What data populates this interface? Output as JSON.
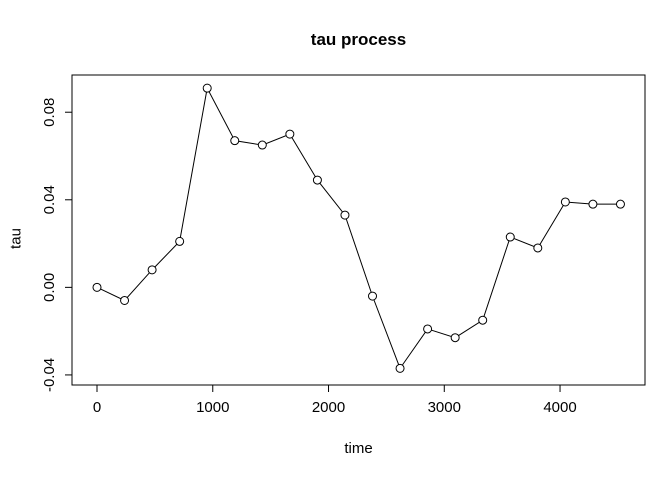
{
  "chart_data": {
    "type": "line",
    "title": "tau process",
    "xlabel": "time",
    "ylabel": "tau",
    "x": [
      0,
      238,
      476,
      714,
      952,
      1190,
      1428,
      1666,
      1904,
      2142,
      2380,
      2618,
      2856,
      3094,
      3332,
      3570,
      3808,
      4046,
      4284,
      4522
    ],
    "y": [
      0.0,
      -0.006,
      0.008,
      0.021,
      0.091,
      0.067,
      0.065,
      0.07,
      0.049,
      0.033,
      -0.004,
      -0.037,
      -0.019,
      -0.023,
      -0.015,
      0.023,
      0.018,
      0.039,
      0.038,
      0.038
    ],
    "xlim": [
      -216,
      4734
    ],
    "ylim": [
      -0.0446,
      0.097
    ],
    "xticks": [
      0,
      1000,
      2000,
      3000,
      4000
    ],
    "xtick_labels": [
      "0",
      "1000",
      "2000",
      "3000",
      "4000"
    ],
    "yticks": [
      -0.04,
      0.0,
      0.04,
      0.08
    ],
    "ytick_labels": [
      "-0.04",
      "0.00",
      "0.04",
      "0.08"
    ],
    "marker": "open-circle",
    "grid": "off",
    "legend": "none",
    "line_color": "#000000",
    "marker_fill": "#ffffff",
    "background": "#ffffff"
  }
}
